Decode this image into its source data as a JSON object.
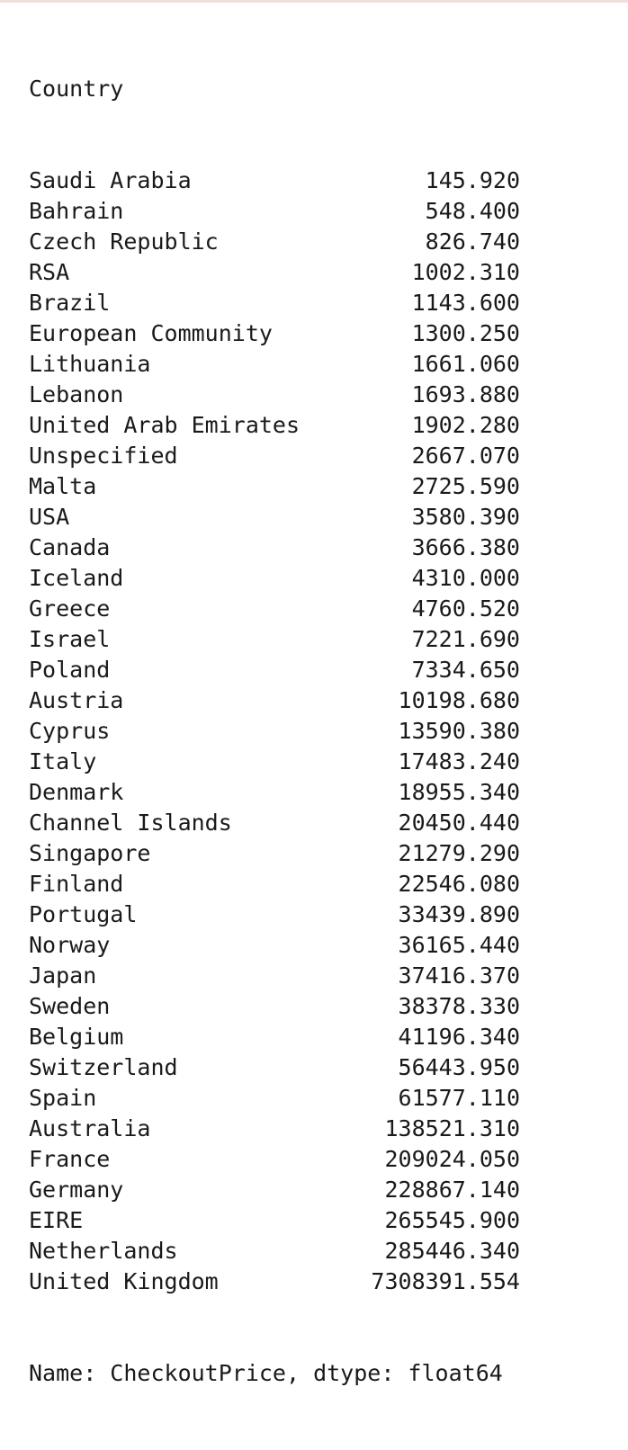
{
  "series": {
    "index_name": "Country",
    "rows": [
      {
        "country": "Saudi Arabia",
        "value": "145.920"
      },
      {
        "country": "Bahrain",
        "value": "548.400"
      },
      {
        "country": "Czech Republic",
        "value": "826.740"
      },
      {
        "country": "RSA",
        "value": "1002.310"
      },
      {
        "country": "Brazil",
        "value": "1143.600"
      },
      {
        "country": "European Community",
        "value": "1300.250"
      },
      {
        "country": "Lithuania",
        "value": "1661.060"
      },
      {
        "country": "Lebanon",
        "value": "1693.880"
      },
      {
        "country": "United Arab Emirates",
        "value": "1902.280"
      },
      {
        "country": "Unspecified",
        "value": "2667.070"
      },
      {
        "country": "Malta",
        "value": "2725.590"
      },
      {
        "country": "USA",
        "value": "3580.390"
      },
      {
        "country": "Canada",
        "value": "3666.380"
      },
      {
        "country": "Iceland",
        "value": "4310.000"
      },
      {
        "country": "Greece",
        "value": "4760.520"
      },
      {
        "country": "Israel",
        "value": "7221.690"
      },
      {
        "country": "Poland",
        "value": "7334.650"
      },
      {
        "country": "Austria",
        "value": "10198.680"
      },
      {
        "country": "Cyprus",
        "value": "13590.380"
      },
      {
        "country": "Italy",
        "value": "17483.240"
      },
      {
        "country": "Denmark",
        "value": "18955.340"
      },
      {
        "country": "Channel Islands",
        "value": "20450.440"
      },
      {
        "country": "Singapore",
        "value": "21279.290"
      },
      {
        "country": "Finland",
        "value": "22546.080"
      },
      {
        "country": "Portugal",
        "value": "33439.890"
      },
      {
        "country": "Norway",
        "value": "36165.440"
      },
      {
        "country": "Japan",
        "value": "37416.370"
      },
      {
        "country": "Sweden",
        "value": "38378.330"
      },
      {
        "country": "Belgium",
        "value": "41196.340"
      },
      {
        "country": "Switzerland",
        "value": "56443.950"
      },
      {
        "country": "Spain",
        "value": "61577.110"
      },
      {
        "country": "Australia",
        "value": "138521.310"
      },
      {
        "country": "France",
        "value": "209024.050"
      },
      {
        "country": "Germany",
        "value": "228867.140"
      },
      {
        "country": "EIRE",
        "value": "265545.900"
      },
      {
        "country": "Netherlands",
        "value": "285446.340"
      },
      {
        "country": "United Kingdom",
        "value": "7308391.554"
      }
    ],
    "footer": "Name: CheckoutPrice, dtype: float64"
  }
}
